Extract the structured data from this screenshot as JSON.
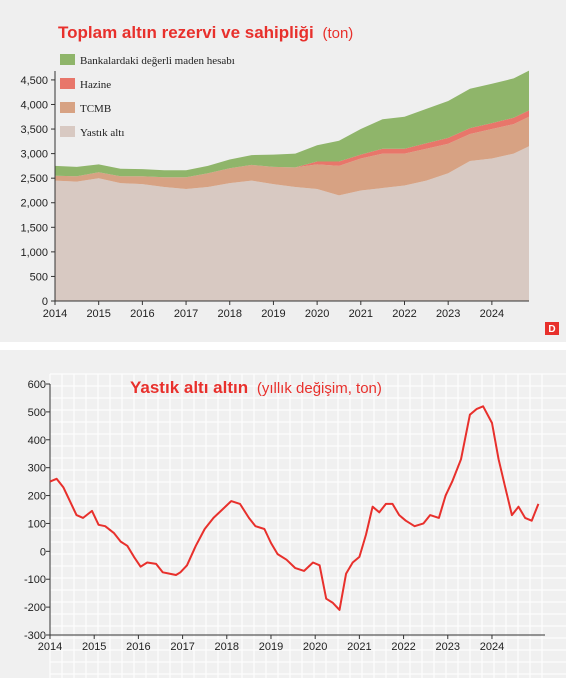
{
  "chart_data": [
    {
      "type": "area",
      "stacked": true,
      "title": "Toplam altın rezervi ve sahipliği",
      "subtitle": "(ton)",
      "x_ticks": [
        "2014",
        "2015",
        "2016",
        "2017",
        "2018",
        "2019",
        "2020",
        "2021",
        "2022",
        "2023",
        "2024"
      ],
      "y_ticks": [
        "0",
        "500",
        "1,000",
        "1,500",
        "2,000",
        "2,500",
        "3,000",
        "3,500",
        "4,000",
        "4,500"
      ],
      "ylim": [
        0,
        4600
      ],
      "xlim": [
        2014.0,
        2024.85
      ],
      "x": [
        2014.0,
        2014.5,
        2015.0,
        2015.5,
        2016.0,
        2016.5,
        2017.0,
        2017.5,
        2018.0,
        2018.5,
        2019.0,
        2019.5,
        2020.0,
        2020.5,
        2021.0,
        2021.5,
        2022.0,
        2022.5,
        2023.0,
        2023.5,
        2024.0,
        2024.5,
        2024.85
      ],
      "series": [
        {
          "name": "Bankalardaki değerli maden hesabı",
          "color": "#8fb56a",
          "values": [
            200,
            190,
            160,
            150,
            145,
            140,
            140,
            150,
            180,
            200,
            250,
            280,
            330,
            420,
            520,
            600,
            650,
            700,
            750,
            800,
            800,
            800,
            810
          ]
        },
        {
          "name": "Hazine",
          "color": "#e8766a",
          "values": [
            0,
            0,
            0,
            0,
            0,
            0,
            0,
            0,
            0,
            0,
            0,
            0,
            60,
            90,
            80,
            100,
            100,
            110,
            120,
            120,
            120,
            130,
            130
          ]
        },
        {
          "name": "TCMB",
          "color": "#d7a283",
          "values": [
            100,
            110,
            120,
            140,
            160,
            200,
            240,
            280,
            300,
            320,
            350,
            400,
            500,
            600,
            650,
            700,
            650,
            650,
            600,
            550,
            600,
            600,
            600
          ]
        },
        {
          "name": "Yastık altı",
          "color": "#d8c9c2",
          "values": [
            2450,
            2430,
            2500,
            2400,
            2380,
            2320,
            2280,
            2320,
            2400,
            2450,
            2380,
            2320,
            2280,
            2150,
            2250,
            2300,
            2350,
            2450,
            2600,
            2850,
            2900,
            3000,
            3150
          ]
        }
      ],
      "legend_order": [
        "Bankalardaki değerli maden hesabı",
        "Hazine",
        "TCMB",
        "Yastık altı"
      ],
      "legend_position": "top-left",
      "grid": false
    },
    {
      "type": "line",
      "title": "Yastık altı altın",
      "subtitle": "(yıllık değişim, ton)",
      "x_ticks": [
        "2014",
        "2015",
        "2016",
        "2017",
        "2018",
        "2019",
        "2020",
        "2021",
        "2022",
        "2023",
        "2024"
      ],
      "y_ticks": [
        "600",
        "500",
        "400",
        "300",
        "200",
        "100",
        "0",
        "-100",
        "-200",
        "-300"
      ],
      "ylim": [
        -300,
        600
      ],
      "xlim": [
        2014.0,
        2025.2
      ],
      "grid": true,
      "series": [
        {
          "name": "",
          "color": "#e8302c",
          "x": [
            2014.0,
            2014.15,
            2014.3,
            2014.45,
            2014.6,
            2014.75,
            2014.95,
            2015.1,
            2015.25,
            2015.45,
            2015.6,
            2015.75,
            2015.9,
            2016.05,
            2016.2,
            2016.4,
            2016.55,
            2016.7,
            2016.85,
            2016.95,
            2017.1,
            2017.3,
            2017.5,
            2017.7,
            2017.9,
            2018.1,
            2018.3,
            2018.5,
            2018.65,
            2018.85,
            2019.0,
            2019.15,
            2019.35,
            2019.55,
            2019.75,
            2019.95,
            2020.1,
            2020.25,
            2020.4,
            2020.55,
            2020.7,
            2020.85,
            2021.0,
            2021.15,
            2021.3,
            2021.45,
            2021.6,
            2021.75,
            2021.9,
            2022.05,
            2022.25,
            2022.45,
            2022.6,
            2022.8,
            2022.95,
            2023.1,
            2023.3,
            2023.5,
            2023.65,
            2023.8,
            2024.0,
            2024.15,
            2024.3,
            2024.45,
            2024.6,
            2024.75,
            2024.9,
            2025.05
          ],
          "values": [
            250,
            260,
            230,
            180,
            130,
            120,
            145,
            95,
            90,
            65,
            35,
            20,
            -20,
            -55,
            -40,
            -45,
            -75,
            -80,
            -85,
            -75,
            -50,
            20,
            80,
            120,
            150,
            180,
            170,
            120,
            90,
            80,
            30,
            -10,
            -30,
            -60,
            -70,
            -40,
            -50,
            -170,
            -185,
            -210,
            -80,
            -40,
            -20,
            60,
            160,
            140,
            170,
            170,
            130,
            110,
            90,
            100,
            130,
            120,
            200,
            250,
            330,
            490,
            510,
            520,
            460,
            330,
            230,
            130,
            160,
            120,
            110,
            170
          ]
        }
      ]
    }
  ],
  "logo": "D"
}
